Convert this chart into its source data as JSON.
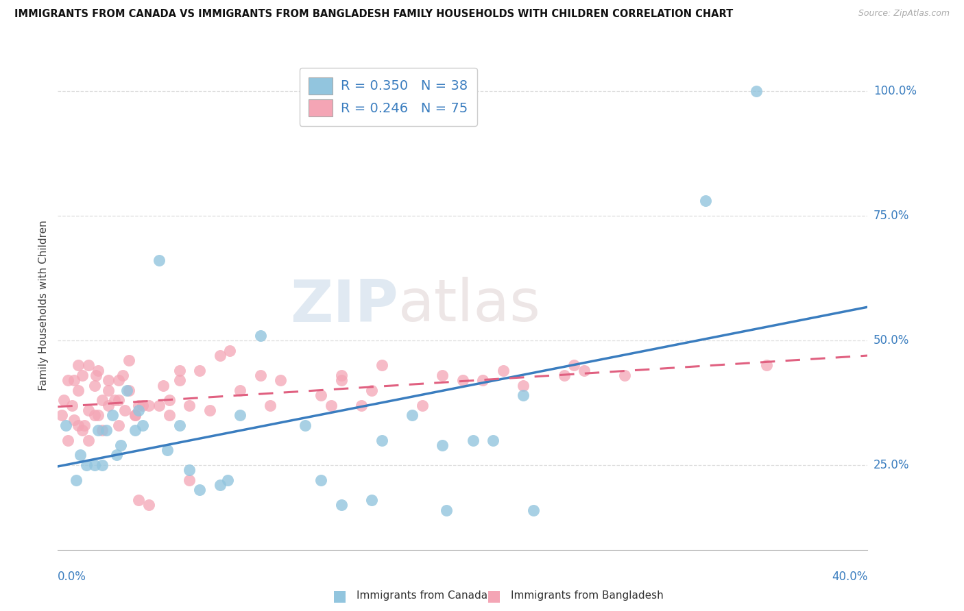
{
  "title": "IMMIGRANTS FROM CANADA VS IMMIGRANTS FROM BANGLADESH FAMILY HOUSEHOLDS WITH CHILDREN CORRELATION CHART",
  "source": "Source: ZipAtlas.com",
  "ylabel": "Family Households with Children",
  "xlim": [
    0.0,
    0.4
  ],
  "ylim": [
    0.08,
    1.06
  ],
  "ytick_values": [
    0.25,
    0.5,
    0.75,
    1.0
  ],
  "ytick_labels": [
    "25.0%",
    "50.0%",
    "75.0%",
    "100.0%"
  ],
  "xtick_left_label": "0.0%",
  "xtick_right_label": "40.0%",
  "color_canada": "#92c5de",
  "color_canada_line": "#3a7dbf",
  "color_bangladesh": "#f4a5b5",
  "color_bangladesh_line": "#e06080",
  "legend_r_canada": "R = 0.350",
  "legend_n_canada": "N = 38",
  "legend_r_bangladesh": "R = 0.246",
  "legend_n_bangladesh": "N = 75",
  "canada_x": [
    0.004,
    0.009,
    0.011,
    0.014,
    0.018,
    0.02,
    0.022,
    0.024,
    0.027,
    0.029,
    0.031,
    0.034,
    0.038,
    0.04,
    0.042,
    0.05,
    0.054,
    0.06,
    0.065,
    0.07,
    0.08,
    0.084,
    0.09,
    0.1,
    0.122,
    0.13,
    0.14,
    0.155,
    0.16,
    0.175,
    0.19,
    0.192,
    0.205,
    0.215,
    0.23,
    0.235,
    0.32,
    0.345
  ],
  "canada_y": [
    0.33,
    0.22,
    0.27,
    0.25,
    0.25,
    0.32,
    0.25,
    0.32,
    0.35,
    0.27,
    0.29,
    0.4,
    0.32,
    0.36,
    0.33,
    0.66,
    0.28,
    0.33,
    0.24,
    0.2,
    0.21,
    0.22,
    0.35,
    0.51,
    0.33,
    0.22,
    0.17,
    0.18,
    0.3,
    0.35,
    0.29,
    0.16,
    0.3,
    0.3,
    0.39,
    0.16,
    0.78,
    1.0
  ],
  "bangladesh_x": [
    0.002,
    0.003,
    0.005,
    0.005,
    0.007,
    0.008,
    0.008,
    0.01,
    0.01,
    0.01,
    0.012,
    0.012,
    0.013,
    0.015,
    0.015,
    0.015,
    0.018,
    0.018,
    0.019,
    0.02,
    0.02,
    0.022,
    0.022,
    0.025,
    0.025,
    0.025,
    0.028,
    0.03,
    0.03,
    0.03,
    0.032,
    0.033,
    0.035,
    0.035,
    0.038,
    0.038,
    0.04,
    0.04,
    0.042,
    0.045,
    0.045,
    0.05,
    0.052,
    0.055,
    0.055,
    0.06,
    0.06,
    0.065,
    0.065,
    0.07,
    0.075,
    0.08,
    0.085,
    0.09,
    0.1,
    0.105,
    0.11,
    0.13,
    0.135,
    0.14,
    0.14,
    0.15,
    0.155,
    0.16,
    0.18,
    0.19,
    0.2,
    0.21,
    0.22,
    0.23,
    0.25,
    0.255,
    0.26,
    0.28,
    0.35
  ],
  "bangladesh_y": [
    0.35,
    0.38,
    0.42,
    0.3,
    0.37,
    0.42,
    0.34,
    0.4,
    0.33,
    0.45,
    0.43,
    0.32,
    0.33,
    0.45,
    0.36,
    0.3,
    0.41,
    0.35,
    0.43,
    0.44,
    0.35,
    0.38,
    0.32,
    0.4,
    0.37,
    0.42,
    0.38,
    0.38,
    0.42,
    0.33,
    0.43,
    0.36,
    0.4,
    0.46,
    0.35,
    0.35,
    0.37,
    0.18,
    0.37,
    0.37,
    0.17,
    0.37,
    0.41,
    0.38,
    0.35,
    0.44,
    0.42,
    0.22,
    0.37,
    0.44,
    0.36,
    0.47,
    0.48,
    0.4,
    0.43,
    0.37,
    0.42,
    0.39,
    0.37,
    0.42,
    0.43,
    0.37,
    0.4,
    0.45,
    0.37,
    0.43,
    0.42,
    0.42,
    0.44,
    0.41,
    0.43,
    0.45,
    0.44,
    0.43,
    0.45
  ],
  "watermark_zip": "ZIP",
  "watermark_atlas": "atlas",
  "background_color": "#ffffff",
  "grid_color": "#dddddd",
  "tick_color": "#3a7dbf"
}
